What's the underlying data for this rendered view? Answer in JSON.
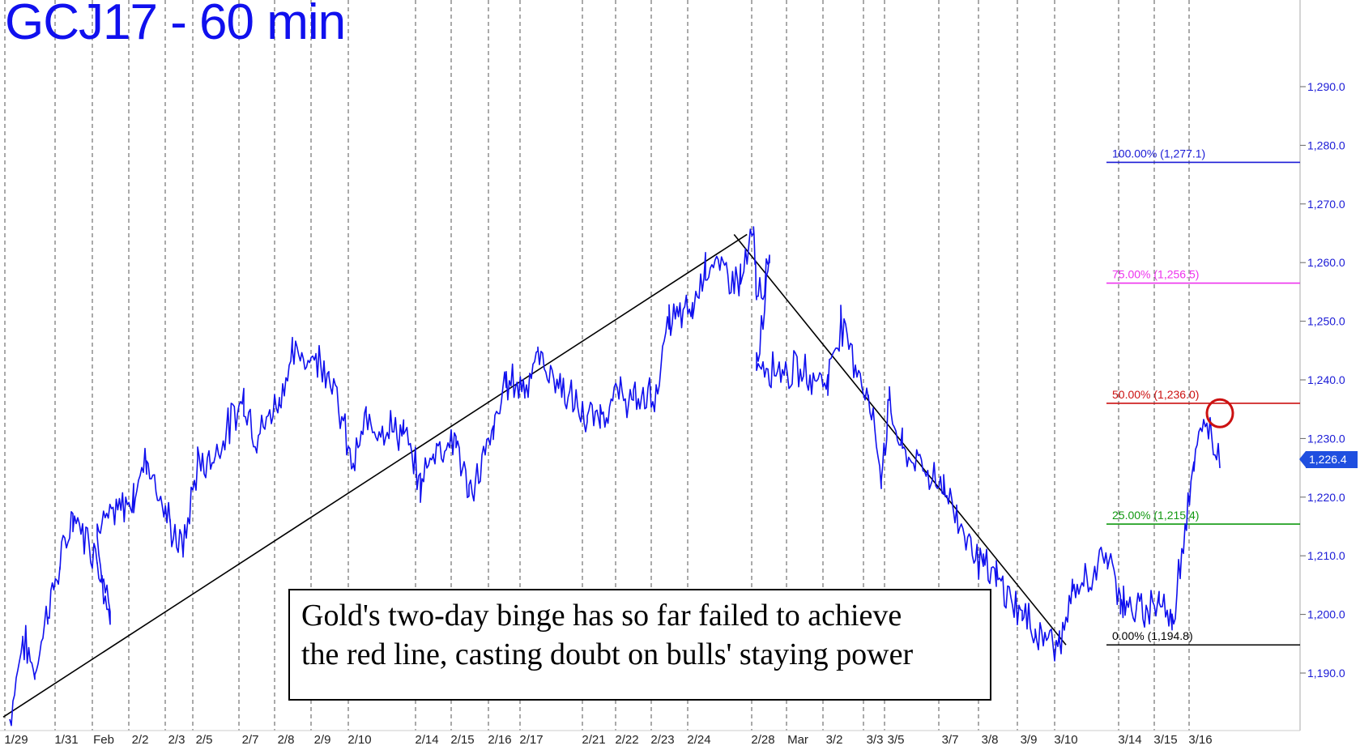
{
  "chart_data": {
    "type": "line",
    "title": "GCJ17 - 60 min",
    "x_labels": [
      "1/29",
      "1/31",
      "Feb",
      "2/2",
      "2/3",
      "2/5",
      "2/7",
      "2/8",
      "2/9",
      "2/10",
      "2/14",
      "2/15",
      "2/16",
      "2/17",
      "2/21",
      "2/22",
      "2/23",
      "2/24",
      "2/28",
      "Mar",
      "3/2",
      "3/3",
      "3/5",
      "3/7",
      "3/8",
      "3/9",
      "3/10",
      "3/14",
      "3/15",
      "3/16"
    ],
    "y_ticks": [
      "1,290.0",
      "1,280.0",
      "1,270.0",
      "1,260.0",
      "1,250.0",
      "1,240.0",
      "1,230.0",
      "1,220.0",
      "1,210.0",
      "1,200.0",
      "1,190.0"
    ],
    "ylim": [
      1182,
      1300
    ],
    "grid": "vertical dashed",
    "series": [
      {
        "color": "#1010ee",
        "points": [
          [
            "1/29",
            1182
          ],
          [
            "1/29",
            1196
          ],
          [
            "1/30",
            1190
          ],
          [
            "1/30",
            1201
          ],
          [
            "1/31",
            1208
          ],
          [
            "1/31",
            1217
          ],
          [
            "Feb",
            1210
          ],
          [
            "Feb",
            1200
          ],
          [
            "2/1",
            1214
          ],
          [
            "2/2",
            1220
          ],
          [
            "2/2",
            1227
          ],
          [
            "2/3",
            1215
          ],
          [
            "2/3",
            1211
          ],
          [
            "2/5",
            1226
          ],
          [
            "2/5",
            1226
          ],
          [
            "2/7",
            1237
          ],
          [
            "2/7",
            1230
          ],
          [
            "2/8",
            1237
          ],
          [
            "2/8",
            1244
          ],
          [
            "2/9",
            1244
          ],
          [
            "2/9",
            1242
          ],
          [
            "2/10",
            1225
          ],
          [
            "2/10",
            1233
          ],
          [
            "2/13",
            1231
          ],
          [
            "2/14",
            1222
          ],
          [
            "2/14",
            1228
          ],
          [
            "2/15",
            1230
          ],
          [
            "2/15",
            1220
          ],
          [
            "2/16",
            1231
          ],
          [
            "2/16",
            1240
          ],
          [
            "2/17",
            1239
          ],
          [
            "2/17",
            1244
          ],
          [
            "2/21",
            1233
          ],
          [
            "2/21",
            1234
          ],
          [
            "2/22",
            1238
          ],
          [
            "2/22",
            1236
          ],
          [
            "2/23",
            1238
          ],
          [
            "2/23",
            1250
          ],
          [
            "2/24",
            1252
          ],
          [
            "2/24",
            1260
          ],
          [
            "2/27",
            1257
          ],
          [
            "2/27",
            1265
          ],
          [
            "2/28",
            1254
          ],
          [
            "2/28",
            1259
          ],
          [
            "Mar",
            1243
          ],
          [
            "3/2",
            1240
          ],
          [
            "3/2",
            1250
          ],
          [
            "3/3",
            1237
          ],
          [
            "3/3",
            1224
          ],
          [
            "3/5",
            1236
          ],
          [
            "3/5",
            1228
          ],
          [
            "3/7",
            1222
          ],
          [
            "3/7",
            1217
          ],
          [
            "3/8",
            1208
          ],
          [
            "3/8",
            1206
          ],
          [
            "3/9",
            1200
          ],
          [
            "3/9",
            1197
          ],
          [
            "3/10",
            1195
          ],
          [
            "3/10",
            1203
          ],
          [
            "3/13",
            1210
          ],
          [
            "3/13",
            1203
          ],
          [
            "3/14",
            1202
          ],
          [
            "3/14",
            1200
          ],
          [
            "3/15",
            1203
          ],
          [
            "3/15",
            1198
          ],
          [
            "3/15",
            1216
          ],
          [
            "3/16",
            1226
          ],
          [
            "3/16",
            1233
          ],
          [
            "3/16",
            1226.4
          ]
        ]
      }
    ],
    "trendlines": [
      {
        "from": [
          "1/29",
          1182.5
        ],
        "to": [
          "2/27",
          1264.8
        ],
        "color": "#000000"
      },
      {
        "from": [
          "2/27",
          1264.8
        ],
        "to": [
          "3/10",
          1194.8
        ],
        "color": "#000000"
      }
    ],
    "levels": [
      {
        "label": "100.00% (1,277.1)",
        "value": 1277.1,
        "color": "#1a1ad6"
      },
      {
        "label": "75.00% (1,256.5)",
        "value": 1256.5,
        "color": "#ee33ee"
      },
      {
        "label": "50.00% (1,236.0)",
        "value": 1236.0,
        "color": "#cc1111"
      },
      {
        "label": "25.00% (1,215.4)",
        "value": 1215.4,
        "color": "#119911"
      },
      {
        "label": "0.00% (1,194.8)",
        "value": 1194.8,
        "color": "#000000"
      }
    ],
    "last_price": "1,226.4",
    "annotation": [
      "Gold's two-day binge has so far failed to achieve",
      "the red line, casting doubt on bulls' staying power"
    ],
    "marker": {
      "shape": "circle",
      "x": "3/16",
      "y": 1232,
      "color": "#cc1111"
    }
  }
}
